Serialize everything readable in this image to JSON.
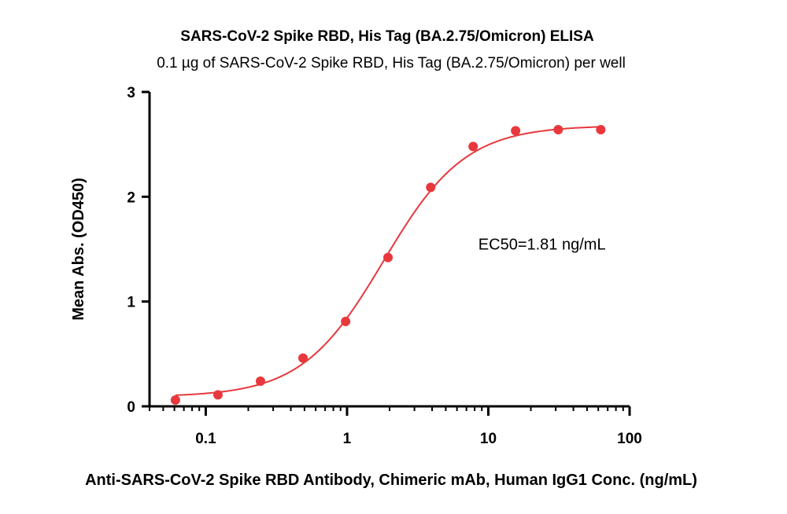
{
  "chart_data": {
    "type": "scatter",
    "title": "SARS-CoV-2 Spike RBD, His Tag (BA.2.75/Omicron) ELISA",
    "subtitle": "0.1 µg of SARS-CoV-2 Spike RBD, His Tag (BA.2.75/Omicron) per well",
    "xlabel": "Anti-SARS-CoV-2 Spike RBD Antibody, Chimeric mAb, Human IgG1 Conc. (ng/mL)",
    "ylabel": "Mean Abs. (OD450)",
    "x_scale": "log",
    "xlim": [
      0.04,
      100
    ],
    "ylim": [
      0,
      3
    ],
    "x_ticks": [
      {
        "value": 0.1,
        "label": "0.1"
      },
      {
        "value": 1,
        "label": "1"
      },
      {
        "value": 10,
        "label": "10"
      },
      {
        "value": 100,
        "label": "100"
      }
    ],
    "y_ticks": [
      {
        "value": 0,
        "label": "0"
      },
      {
        "value": 1,
        "label": "1"
      },
      {
        "value": 2,
        "label": "2"
      },
      {
        "value": 3,
        "label": "3"
      }
    ],
    "series": [
      {
        "color": "#e8383d",
        "points": [
          {
            "x": 0.061,
            "y": 0.06
          },
          {
            "x": 0.122,
            "y": 0.11
          },
          {
            "x": 0.244,
            "y": 0.24
          },
          {
            "x": 0.488,
            "y": 0.46
          },
          {
            "x": 0.977,
            "y": 0.81
          },
          {
            "x": 1.95,
            "y": 1.42
          },
          {
            "x": 3.91,
            "y": 2.09
          },
          {
            "x": 7.81,
            "y": 2.48
          },
          {
            "x": 15.6,
            "y": 2.63
          },
          {
            "x": 31.25,
            "y": 2.64
          },
          {
            "x": 62.5,
            "y": 2.64
          }
        ],
        "fit": {
          "model": "4PL",
          "bottom": 0.09,
          "top": 2.68,
          "ec50": 1.81,
          "hill": 1.5,
          "x_range": [
            0.061,
            62.5
          ]
        }
      }
    ],
    "annotations": [
      {
        "text": "EC50=1.81 ng/mL",
        "x": 8.5,
        "y": 1.55
      }
    ],
    "grid": false,
    "legend": "none"
  }
}
